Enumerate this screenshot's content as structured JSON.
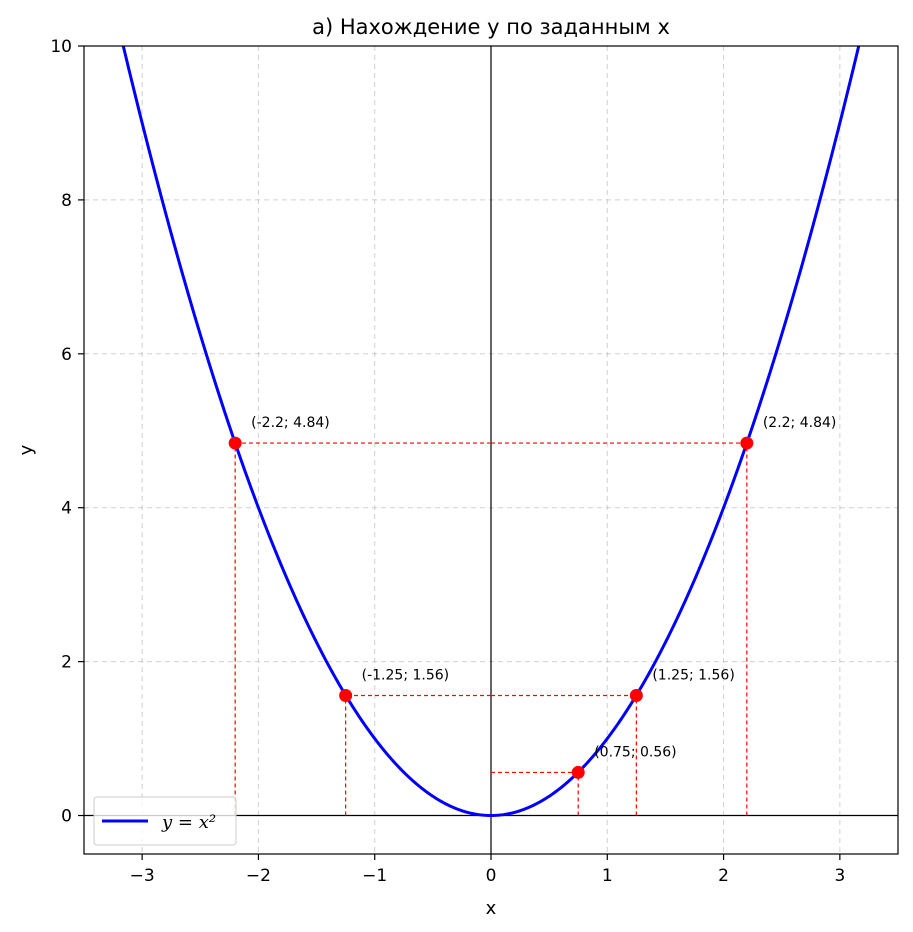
{
  "chart_data": {
    "type": "line",
    "title": "а) Нахождение y по заданным x",
    "xlabel": "x",
    "ylabel": "y",
    "xlim": [
      -3.5,
      3.5
    ],
    "ylim": [
      -0.5,
      10
    ],
    "x_ticks": [
      -3,
      -2,
      -1,
      0,
      1,
      2,
      3
    ],
    "x_tick_labels": [
      "−3",
      "−2",
      "−1",
      "0",
      "1",
      "2",
      "3"
    ],
    "y_ticks": [
      0,
      2,
      4,
      6,
      8,
      10
    ],
    "y_tick_labels": [
      "0",
      "2",
      "4",
      "6",
      "8",
      "10"
    ],
    "grid": true,
    "legend_position": "lower-left",
    "series": [
      {
        "name": "y = x²",
        "function": "x^2",
        "color": "#0000ff"
      }
    ],
    "points": [
      {
        "x": -2.2,
        "y": 4.84,
        "label": "(-2.2; 4.84)"
      },
      {
        "x": 2.2,
        "y": 4.84,
        "label": "(2.2; 4.84)"
      },
      {
        "x": -1.25,
        "y": 1.56,
        "label": "(-1.25; 1.56)"
      },
      {
        "x": 1.25,
        "y": 1.56,
        "label": "(1.25; 1.56)"
      },
      {
        "x": 0.75,
        "y": 0.56,
        "label": "(0.75; 0.56)"
      }
    ],
    "point_color": "#ff0000",
    "guide_color": "#ff0000"
  }
}
